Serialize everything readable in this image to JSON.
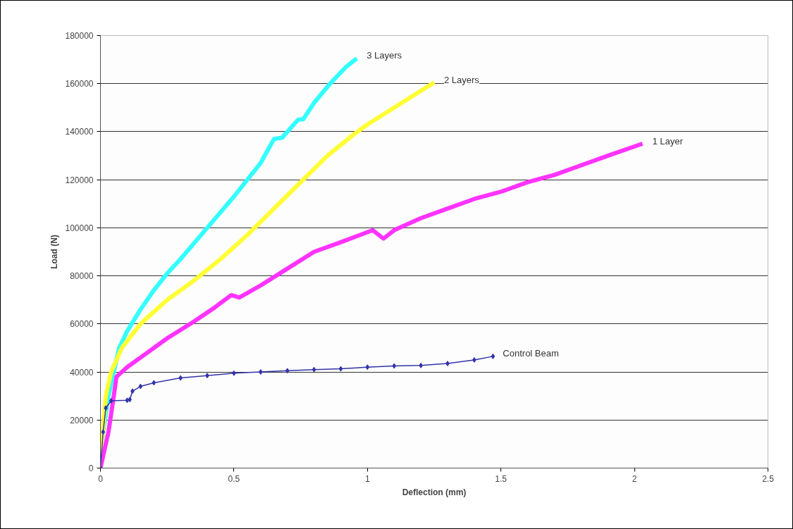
{
  "chart_data": {
    "type": "line",
    "xlabel": "Deflection (mm)",
    "ylabel": "Load (N)",
    "xlim": [
      0,
      2.5
    ],
    "xticks": [
      0,
      0.5,
      1,
      1.5,
      2,
      2.5
    ],
    "ylim": [
      0,
      180000
    ],
    "yticks": [
      0,
      20000,
      40000,
      60000,
      80000,
      100000,
      120000,
      140000,
      160000,
      180000
    ],
    "grid": "y",
    "line_style": "solid",
    "series": [
      {
        "name": "3 Layers",
        "color": "#33ffff",
        "x": [
          0,
          0.01,
          0.03,
          0.05,
          0.07,
          0.1,
          0.15,
          0.2,
          0.25,
          0.3,
          0.4,
          0.5,
          0.6,
          0.65,
          0.68,
          0.74,
          0.76,
          0.8,
          0.86,
          0.92,
          0.96
        ],
        "values": [
          0,
          15000,
          30000,
          40000,
          50000,
          57000,
          66000,
          74000,
          81000,
          87000,
          100000,
          113000,
          127000,
          137000,
          137500,
          145000,
          145200,
          152000,
          160000,
          167000,
          170500
        ]
      },
      {
        "name": "2 Layers",
        "color": "#ffff33",
        "x": [
          0,
          0.005,
          0.02,
          0.04,
          0.08,
          0.15,
          0.25,
          0.35,
          0.45,
          0.55,
          0.65,
          0.75,
          0.85,
          0.95,
          1.0,
          1.1,
          1.2,
          1.25
        ],
        "values": [
          0,
          10000,
          30000,
          40000,
          50000,
          60000,
          70000,
          78000,
          87000,
          97000,
          108000,
          119000,
          130000,
          139000,
          143000,
          150000,
          157000,
          160500
        ]
      },
      {
        "name": "1 Layer",
        "color": "#ff33ff",
        "x": [
          0,
          0.03,
          0.05,
          0.06,
          0.1,
          0.15,
          0.25,
          0.35,
          0.43,
          0.49,
          0.52,
          0.6,
          0.7,
          0.8,
          0.9,
          1.02,
          1.06,
          1.1,
          1.2,
          1.3,
          1.4,
          1.5,
          1.6,
          1.7,
          1.8,
          1.9,
          2.03
        ],
        "values": [
          0,
          15000,
          30000,
          38000,
          42000,
          46000,
          54000,
          61000,
          67000,
          72000,
          71000,
          76000,
          83000,
          90000,
          94000,
          99000,
          95500,
          99000,
          104000,
          108000,
          112000,
          115000,
          119000,
          122000,
          126000,
          130000,
          135000
        ]
      },
      {
        "name": "Control Beam",
        "color": "#3333aa",
        "marker": "diamond",
        "x": [
          0,
          0.01,
          0.02,
          0.04,
          0.1,
          0.11,
          0.12,
          0.15,
          0.2,
          0.3,
          0.4,
          0.5,
          0.6,
          0.7,
          0.8,
          0.9,
          1.0,
          1.1,
          1.2,
          1.3,
          1.4,
          1.47
        ],
        "values": [
          0,
          15000,
          25000,
          28000,
          28200,
          28500,
          32000,
          34000,
          35500,
          37500,
          38500,
          39500,
          40000,
          40500,
          41000,
          41300,
          42000,
          42500,
          42700,
          43500,
          45000,
          46500
        ]
      }
    ]
  }
}
